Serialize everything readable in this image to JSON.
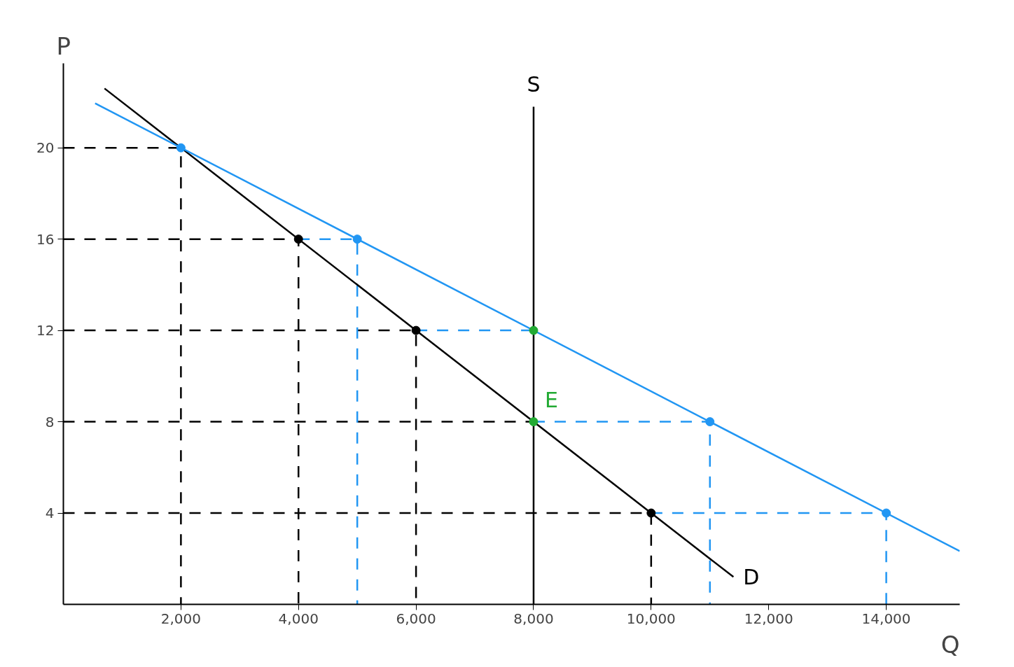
{
  "chart_data": {
    "type": "line",
    "xlabel": "Q",
    "ylabel": "P",
    "xlim": [
      0,
      15250
    ],
    "ylim": [
      0,
      23.7
    ],
    "xticks": [
      {
        "value": 2000,
        "label": "2,000"
      },
      {
        "value": 4000,
        "label": "4,000"
      },
      {
        "value": 6000,
        "label": "6,000"
      },
      {
        "value": 8000,
        "label": "8,000"
      },
      {
        "value": 10000,
        "label": "10,000"
      },
      {
        "value": 12000,
        "label": "12,000"
      },
      {
        "value": 14000,
        "label": "14,000"
      }
    ],
    "yticks": [
      4,
      8,
      12,
      16,
      20
    ],
    "grid": false,
    "marker": "none",
    "line_style": "solid",
    "series": [
      {
        "type": "line",
        "line_style": "dashed",
        "color": "#000000",
        "x": [
          0,
          2000,
          2000
        ],
        "values": [
          20,
          20,
          0
        ]
      },
      {
        "type": "line",
        "line_style": "dashed",
        "color": "#000000",
        "x": [
          0,
          4000,
          4000
        ],
        "values": [
          16,
          16,
          0
        ]
      },
      {
        "type": "line",
        "line_style": "dashed",
        "color": "#000000",
        "x": [
          0,
          6000,
          6000
        ],
        "values": [
          12,
          12,
          0
        ]
      },
      {
        "type": "line",
        "line_style": "dashed",
        "color": "#000000",
        "x": [
          0,
          8000
        ],
        "values": [
          8,
          8
        ]
      },
      {
        "type": "line",
        "line_style": "dashed",
        "color": "#000000",
        "x": [
          0,
          10000,
          10000
        ],
        "values": [
          4,
          4,
          0
        ]
      },
      {
        "type": "line",
        "line_style": "dashed",
        "color": "#2196f3",
        "x": [
          4000,
          5000,
          5000
        ],
        "values": [
          16,
          16,
          0
        ]
      },
      {
        "type": "line",
        "line_style": "dashed",
        "color": "#2196f3",
        "x": [
          6000,
          8000
        ],
        "values": [
          12,
          12
        ]
      },
      {
        "type": "line",
        "line_style": "dashed",
        "color": "#2196f3",
        "x": [
          8000,
          11000,
          11000
        ],
        "values": [
          8,
          8,
          0
        ]
      },
      {
        "type": "line",
        "line_style": "dashed",
        "color": "#2196f3",
        "x": [
          10000,
          14000,
          14000
        ],
        "values": [
          4,
          4,
          0
        ]
      },
      {
        "type": "line",
        "name": "S",
        "color": "#000000",
        "x": [
          8000,
          8000
        ],
        "values": [
          0,
          21.8
        ]
      },
      {
        "type": "line",
        "name": "D",
        "color": "#000000",
        "x": [
          700,
          11400
        ],
        "values": [
          22.6,
          1.2
        ]
      },
      {
        "type": "line",
        "color": "#2196f3",
        "x": [
          540,
          15250
        ],
        "values": [
          21.95,
          2.33
        ]
      },
      {
        "type": "scatter",
        "marker": "circle",
        "color": "#000000",
        "x": [
          4000,
          6000,
          10000
        ],
        "values": [
          16,
          12,
          4
        ]
      },
      {
        "type": "scatter",
        "marker": "circle",
        "color": "#2196f3",
        "x": [
          2000,
          5000,
          11000,
          14000
        ],
        "values": [
          20,
          16,
          8,
          4
        ]
      },
      {
        "type": "scatter",
        "marker": "circle",
        "color": "#22aa33",
        "x": [
          8000,
          8000
        ],
        "values": [
          12,
          8
        ]
      }
    ],
    "annotations": [
      {
        "text": "E",
        "x": 8000,
        "y": 8
      }
    ]
  }
}
